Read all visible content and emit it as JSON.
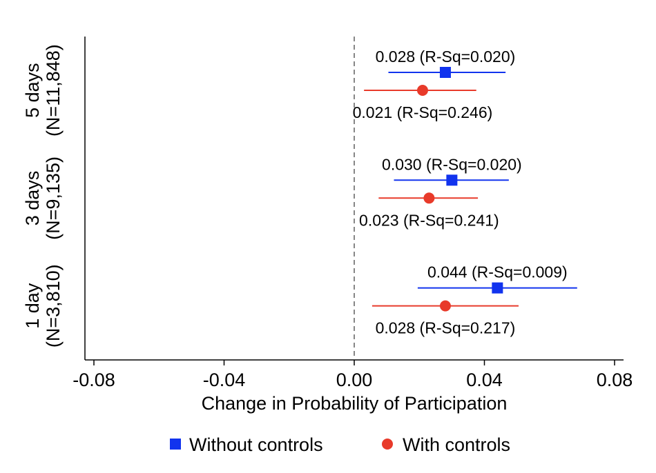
{
  "chart_data": {
    "type": "scatter",
    "subtype": "coefficient-plot",
    "title": "",
    "xlabel": "Change in Probability of Participation",
    "ylabel": "",
    "xlim": [
      -0.08,
      0.08
    ],
    "xticks": [
      "-0.08",
      "-0.04",
      "0.00",
      "0.04",
      "0.08"
    ],
    "xtick_values": [
      -0.08,
      -0.04,
      0.0,
      0.04,
      0.08
    ],
    "reference_line": 0.0,
    "grid": false,
    "legend_position": "bottom",
    "groups": [
      {
        "label_line1": "5 days",
        "label_line2": "(N=11,848)",
        "estimates": [
          {
            "series": "Without controls",
            "value": 0.028,
            "ci": [
              0.0105,
              0.0465
            ],
            "label": "0.028 (R-Sq=0.020)"
          },
          {
            "series": "With controls",
            "value": 0.021,
            "ci": [
              0.003,
              0.0375
            ],
            "label": "0.021 (R-Sq=0.246)"
          }
        ]
      },
      {
        "label_line1": "3 days",
        "label_line2": "(N=9,135)",
        "estimates": [
          {
            "series": "Without controls",
            "value": 0.03,
            "ci": [
              0.0122,
              0.0475
            ],
            "label": "0.030 (R-Sq=0.020)"
          },
          {
            "series": "With controls",
            "value": 0.023,
            "ci": [
              0.0075,
              0.038
            ],
            "label": "0.023 (R-Sq=0.241)"
          }
        ]
      },
      {
        "label_line1": "1 day",
        "label_line2": "(N=3,810)",
        "estimates": [
          {
            "series": "Without controls",
            "value": 0.044,
            "ci": [
              0.0195,
              0.0685
            ],
            "label": "0.044 (R-Sq=0.009)"
          },
          {
            "series": "With controls",
            "value": 0.028,
            "ci": [
              0.0055,
              0.0505
            ],
            "label": "0.028 (R-Sq=0.217)"
          }
        ]
      }
    ],
    "series": [
      {
        "name": "Without controls",
        "marker": "square",
        "color": "#1133ee"
      },
      {
        "name": "With controls",
        "marker": "circle",
        "color": "#e83a2a"
      }
    ]
  }
}
